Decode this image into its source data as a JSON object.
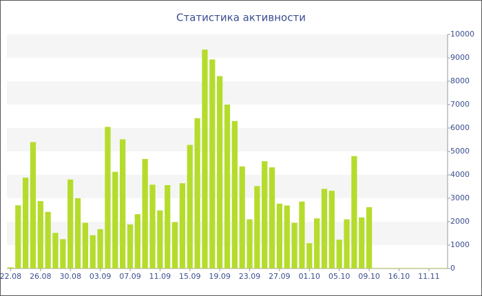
{
  "chart_data": {
    "type": "bar",
    "title": "Статистика активности",
    "categories": [
      "22.08",
      null,
      null,
      null,
      "26.08",
      null,
      null,
      null,
      "30.08",
      null,
      null,
      null,
      "03.09",
      null,
      null,
      null,
      "07.09",
      null,
      null,
      null,
      "11.09",
      null,
      null,
      null,
      "15.09",
      null,
      null,
      null,
      "19.09",
      null,
      null,
      null,
      "23.09",
      null,
      null,
      null,
      "27.09",
      null,
      null,
      null,
      "01.10",
      null,
      null,
      null,
      "05.10",
      null,
      null,
      null,
      "09.10",
      null,
      null,
      null,
      "16.10",
      null,
      null,
      null,
      "11.11",
      null,
      null
    ],
    "values": [
      50,
      2700,
      3880,
      5400,
      2880,
      2420,
      1520,
      1250,
      3800,
      3000,
      1950,
      1420,
      1680,
      6050,
      4130,
      5520,
      1880,
      2320,
      4680,
      3580,
      2480,
      3560,
      1980,
      3640,
      5280,
      6420,
      9350,
      8930,
      8220,
      7000,
      6300,
      4360,
      2100,
      3520,
      4580,
      4320,
      2770,
      2690,
      1950,
      2860,
      1080,
      2140,
      3400,
      3320,
      1230,
      2100,
      4800,
      2180,
      2620,
      20,
      20,
      20,
      20,
      20,
      20,
      20,
      20,
      20,
      20
    ],
    "color": "#b5dc2c",
    "ylim": [
      0,
      10000
    ],
    "yticks": [
      0,
      1000,
      2000,
      3000,
      4000,
      5000,
      6000,
      7000,
      8000,
      9000,
      10000
    ],
    "grid": true
  }
}
